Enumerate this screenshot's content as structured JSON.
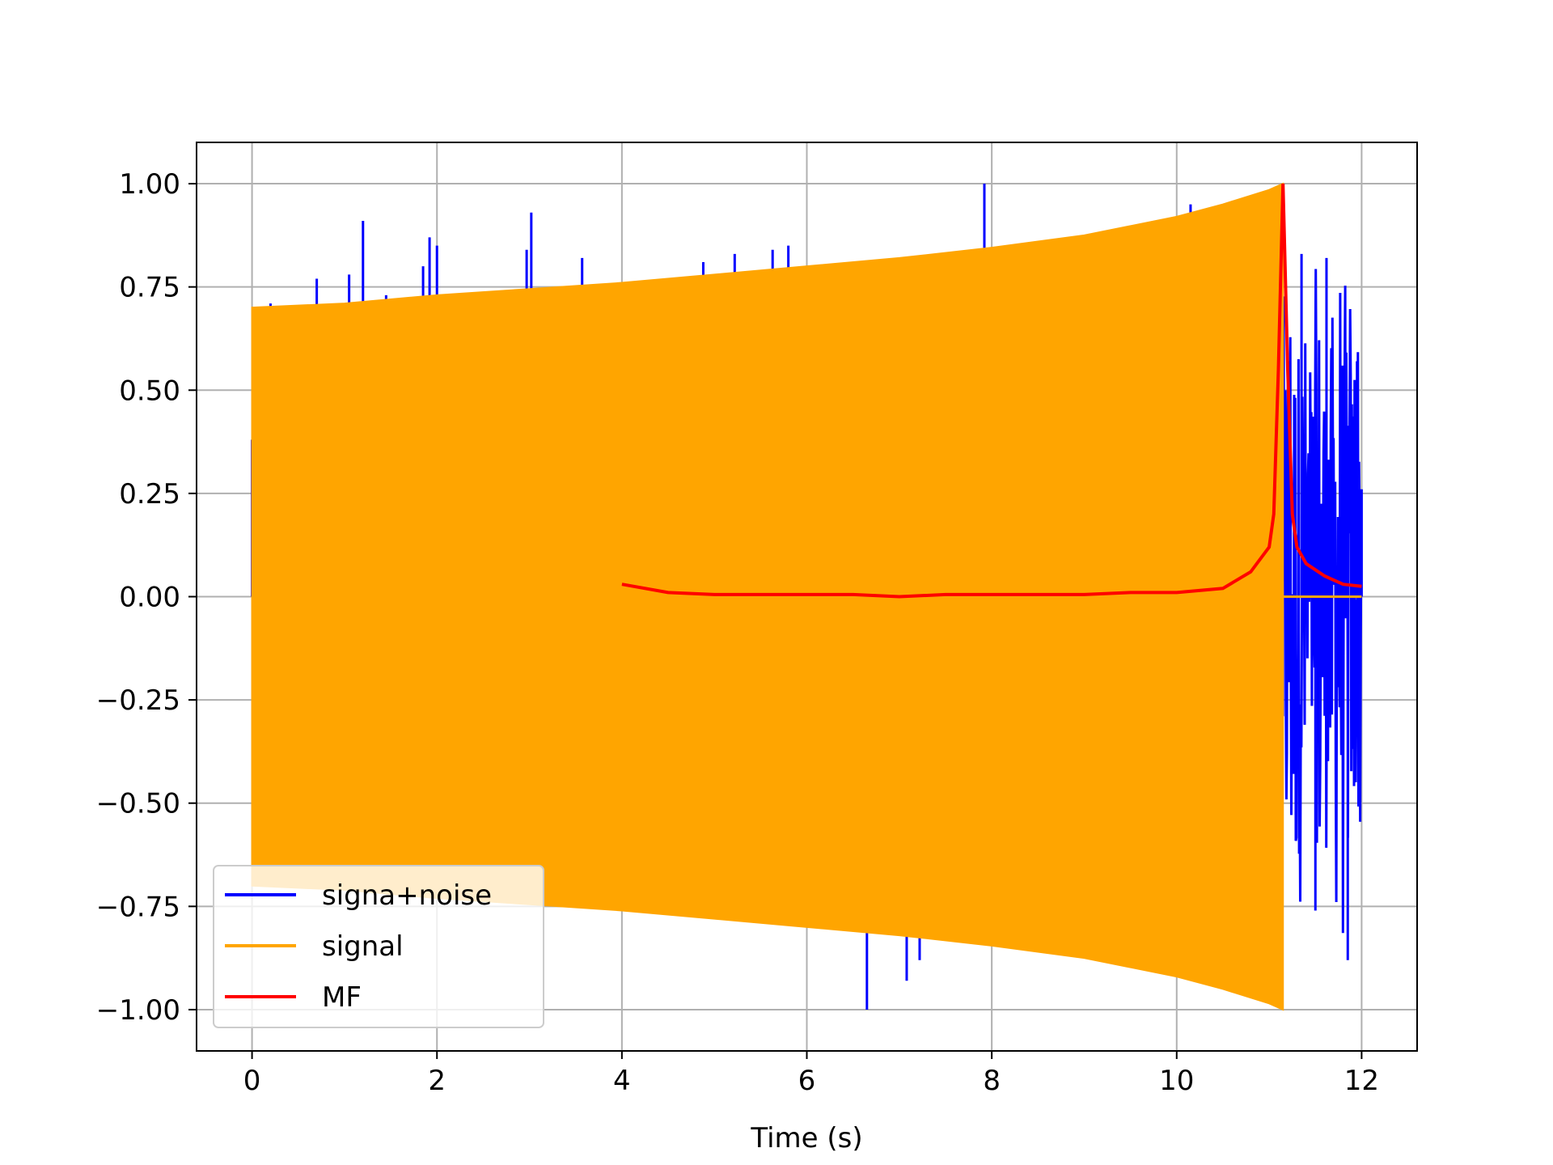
{
  "chart_data": {
    "type": "line",
    "title": "",
    "xlabel": "Time (s)",
    "ylabel": "",
    "xlim": [
      -0.6,
      12.6
    ],
    "ylim": [
      -1.1,
      1.1
    ],
    "x_ticks": [
      0,
      2,
      4,
      6,
      8,
      10,
      12
    ],
    "x_tick_labels": [
      "0",
      "2",
      "4",
      "6",
      "8",
      "10",
      "12"
    ],
    "y_ticks": [
      1.0,
      0.75,
      0.5,
      0.25,
      0.0,
      -0.25,
      -0.5,
      -0.75,
      -1.0
    ],
    "y_tick_labels": [
      "1.00",
      "0.75",
      "0.50",
      "0.25",
      "0.00",
      "−0.25",
      "−0.50",
      "−0.75",
      "−1.00"
    ],
    "grid": true,
    "legend_position": "lower-left",
    "series": [
      {
        "name": "signa+noise",
        "color": "#0000ff",
        "description_points": {
          "x": [
            0.0,
            0.2,
            0.7,
            1.05,
            1.2,
            1.45,
            1.85,
            1.92,
            2.0,
            2.97,
            3.02,
            3.57,
            4.88,
            5.22,
            5.63,
            5.8,
            6.65,
            7.08,
            7.22,
            7.92,
            10.15,
            11.15,
            11.35,
            11.5,
            11.62,
            11.85,
            11.95,
            12.0
          ],
          "y": [
            0.38,
            0.71,
            0.77,
            0.78,
            0.91,
            0.73,
            0.8,
            0.87,
            0.85,
            0.84,
            0.93,
            0.82,
            0.81,
            0.83,
            0.84,
            0.85,
            -1.0,
            -0.93,
            -0.88,
            1.0,
            0.95,
            0.48,
            0.83,
            -0.76,
            0.82,
            -0.88,
            0.57,
            0.26
          ]
        }
      },
      {
        "name": "signal",
        "color": "#ffa500",
        "envelope": {
          "x": [
            0.0,
            1.0,
            2.0,
            3.0,
            4.0,
            5.0,
            6.0,
            7.0,
            8.0,
            9.0,
            10.0,
            10.5,
            11.0,
            11.15
          ],
          "upper": [
            0.7,
            0.71,
            0.73,
            0.745,
            0.76,
            0.78,
            0.8,
            0.82,
            0.845,
            0.875,
            0.92,
            0.95,
            0.985,
            1.0
          ],
          "lower": [
            -0.7,
            -0.71,
            -0.73,
            -0.745,
            -0.76,
            -0.78,
            -0.8,
            -0.82,
            -0.845,
            -0.875,
            -0.92,
            -0.95,
            -0.985,
            -1.0
          ]
        },
        "after_end_value": 0.0,
        "x_end": 12.0
      },
      {
        "name": "MF",
        "color": "#ff0000",
        "x": [
          4.0,
          4.5,
          5.0,
          5.5,
          6.0,
          6.5,
          7.0,
          7.5,
          8.0,
          8.5,
          9.0,
          9.5,
          10.0,
          10.5,
          10.8,
          11.0,
          11.05,
          11.1,
          11.15,
          11.2,
          11.25,
          11.3,
          11.4,
          11.6,
          11.8,
          12.0
        ],
        "y": [
          0.03,
          0.01,
          0.005,
          0.005,
          0.005,
          0.005,
          0.0,
          0.005,
          0.005,
          0.005,
          0.005,
          0.01,
          0.01,
          0.02,
          0.06,
          0.12,
          0.2,
          0.55,
          1.0,
          0.55,
          0.2,
          0.12,
          0.08,
          0.05,
          0.03,
          0.025
        ]
      }
    ]
  }
}
